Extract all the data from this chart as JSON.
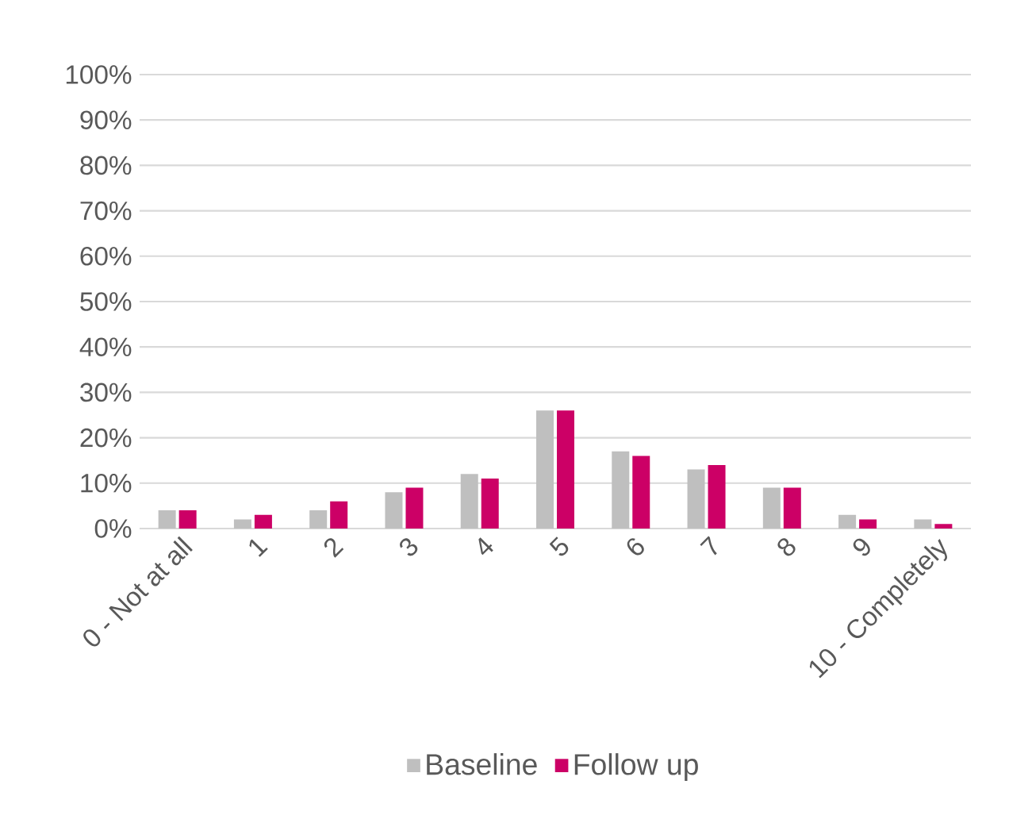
{
  "chart_data": {
    "type": "bar",
    "categories": [
      "0 - Not at all",
      "1",
      "2",
      "3",
      "4",
      "5",
      "6",
      "7",
      "8",
      "9",
      "10 - Completely"
    ],
    "series": [
      {
        "name": "Baseline",
        "color": "#bfbfbf",
        "values": [
          4,
          2,
          4,
          8,
          12,
          26,
          17,
          13,
          9,
          3,
          2
        ]
      },
      {
        "name": "Follow up",
        "color": "#cc0066",
        "values": [
          4,
          3,
          6,
          9,
          11,
          26,
          16,
          14,
          9,
          2,
          1
        ]
      }
    ],
    "ylim": [
      0,
      100
    ],
    "yticks": [
      {
        "value": 0,
        "label": "0%"
      },
      {
        "value": 10,
        "label": "10%"
      },
      {
        "value": 20,
        "label": "20%"
      },
      {
        "value": 30,
        "label": "30%"
      },
      {
        "value": 40,
        "label": "40%"
      },
      {
        "value": 50,
        "label": "50%"
      },
      {
        "value": 60,
        "label": "60%"
      },
      {
        "value": 70,
        "label": "70%"
      },
      {
        "value": 80,
        "label": "80%"
      },
      {
        "value": 90,
        "label": "90%"
      },
      {
        "value": 100,
        "label": "100%"
      }
    ],
    "grid": "y",
    "legend": "bottom"
  }
}
